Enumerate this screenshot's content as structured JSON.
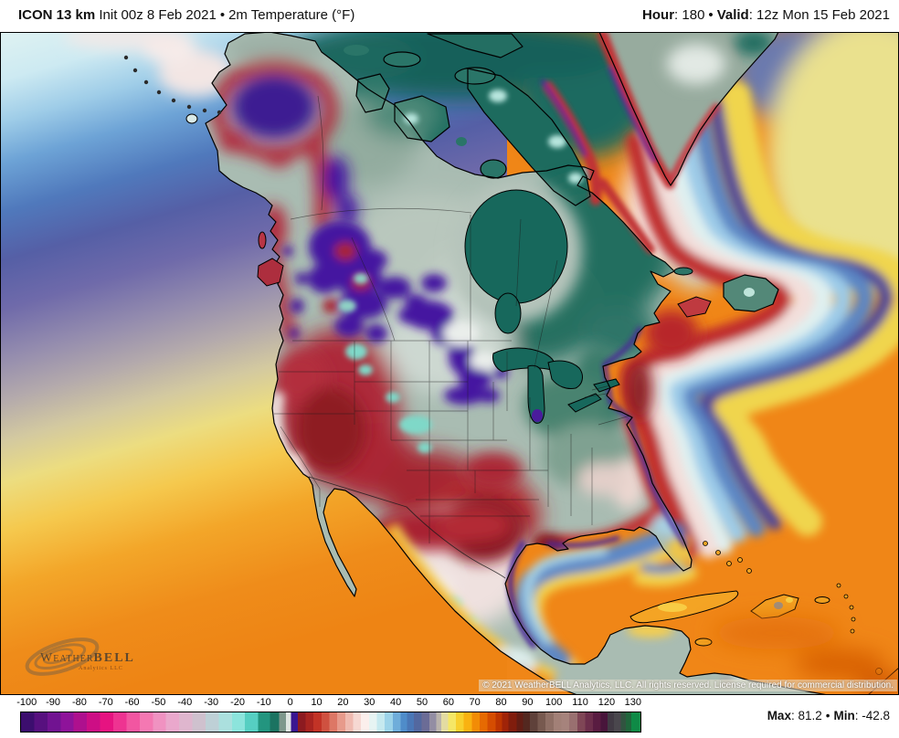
{
  "header": {
    "model": "ICON 13 km",
    "init": "Init 00z 8 Feb 2021",
    "bullet": "•",
    "variable": "2m Temperature (°F)",
    "hour_label": "Hour",
    "hour_value": ": 180",
    "valid_label": "Valid",
    "valid_value": ": 12z Mon 15 Feb 2021"
  },
  "map": {
    "copyright": "© 2021 WeatherBELL Analytics, LLC. All rights reserved. License required for commercial distribution.",
    "logo": {
      "word_start": "Weather",
      "word_end": "BELL",
      "subtitle": "Analytics LLC"
    }
  },
  "legend": {
    "unit": "°F",
    "range": [
      -102.5,
      132.5
    ],
    "ticks": [
      -100,
      -90,
      -80,
      -70,
      -60,
      -50,
      -40,
      -30,
      -20,
      -10,
      0,
      10,
      20,
      30,
      40,
      50,
      60,
      70,
      80,
      90,
      100,
      110,
      120,
      130
    ],
    "stops": [
      {
        "t": -100,
        "c": "#3c0e6e"
      },
      {
        "t": -95,
        "c": "#57107f"
      },
      {
        "t": -90,
        "c": "#711391"
      },
      {
        "t": -85,
        "c": "#8e139a"
      },
      {
        "t": -80,
        "c": "#ae108e"
      },
      {
        "t": -75,
        "c": "#cd0e85"
      },
      {
        "t": -70,
        "c": "#e61381"
      },
      {
        "t": -65,
        "c": "#ee3391"
      },
      {
        "t": -60,
        "c": "#f256a1"
      },
      {
        "t": -55,
        "c": "#f478b2"
      },
      {
        "t": -50,
        "c": "#f092c1"
      },
      {
        "t": -45,
        "c": "#eaa8cc"
      },
      {
        "t": -40,
        "c": "#dfb6ce"
      },
      {
        "t": -35,
        "c": "#cfc1ce"
      },
      {
        "t": -30,
        "c": "#bed0d6"
      },
      {
        "t": -25,
        "c": "#abe0de"
      },
      {
        "t": -20,
        "c": "#8ce4dc"
      },
      {
        "t": -15,
        "c": "#56cfc2"
      },
      {
        "t": -10,
        "c": "#23957f"
      },
      {
        "t": -6,
        "c": "#1b7361"
      },
      {
        "t": -3,
        "c": "#7e978c"
      },
      {
        "t": -1,
        "c": "#dfe5e1"
      },
      {
        "t": 1,
        "c": "#3a1690"
      },
      {
        "t": 4,
        "c": "#8c1a20"
      },
      {
        "t": 7,
        "c": "#a82420"
      },
      {
        "t": 10,
        "c": "#c23326"
      },
      {
        "t": 13,
        "c": "#cf5140"
      },
      {
        "t": 16,
        "c": "#dd7765"
      },
      {
        "t": 19,
        "c": "#e79a8b"
      },
      {
        "t": 22,
        "c": "#efbab0"
      },
      {
        "t": 25,
        "c": "#f6d8d2"
      },
      {
        "t": 28,
        "c": "#fbefec"
      },
      {
        "t": 31,
        "c": "#e7f4f3"
      },
      {
        "t": 34,
        "c": "#c6e9ef"
      },
      {
        "t": 37,
        "c": "#9cd3e9"
      },
      {
        "t": 40,
        "c": "#6fadda"
      },
      {
        "t": 43,
        "c": "#4f8cc9"
      },
      {
        "t": 45,
        "c": "#4a77b6"
      },
      {
        "t": 48,
        "c": "#53689f"
      },
      {
        "t": 51,
        "c": "#6b6c96"
      },
      {
        "t": 54,
        "c": "#938ea3"
      },
      {
        "t": 56,
        "c": "#bab4ac"
      },
      {
        "t": 58,
        "c": "#e3dba2"
      },
      {
        "t": 61,
        "c": "#f5e766"
      },
      {
        "t": 64,
        "c": "#f8d02e"
      },
      {
        "t": 67,
        "c": "#f9b211"
      },
      {
        "t": 70,
        "c": "#f28c06"
      },
      {
        "t": 73,
        "c": "#e66a02"
      },
      {
        "t": 76,
        "c": "#d54d01"
      },
      {
        "t": 79,
        "c": "#bd3501"
      },
      {
        "t": 81,
        "c": "#a02408"
      },
      {
        "t": 84,
        "c": "#801d0d"
      },
      {
        "t": 87,
        "c": "#621d14"
      },
      {
        "t": 89,
        "c": "#532820"
      },
      {
        "t": 92,
        "c": "#5f413a"
      },
      {
        "t": 95,
        "c": "#77594f"
      },
      {
        "t": 98,
        "c": "#8f6f65"
      },
      {
        "t": 101,
        "c": "#a28077"
      },
      {
        "t": 104,
        "c": "#a6837c"
      },
      {
        "t": 107,
        "c": "#997070"
      },
      {
        "t": 110,
        "c": "#7f4656"
      },
      {
        "t": 113,
        "c": "#6c2e4b"
      },
      {
        "t": 116,
        "c": "#591c41"
      },
      {
        "t": 119,
        "c": "#48153b"
      },
      {
        "t": 121,
        "c": "#413a44"
      },
      {
        "t": 124,
        "c": "#4a474d"
      },
      {
        "t": 126,
        "c": "#315440"
      },
      {
        "t": 128,
        "c": "#20663c"
      },
      {
        "t": 130,
        "c": "#0f8a46"
      }
    ]
  },
  "footer": {
    "max_label": "Max",
    "max_value": ": 81.2",
    "bullet": "•",
    "min_label": "Min",
    "min_value": ": -42.8"
  },
  "chart_data": {
    "type": "heatmap",
    "title": "ICON 13 km 2m Temperature (°F)",
    "init": "00z 8 Feb 2021",
    "forecast_hour": 180,
    "valid": "12z Mon 15 Feb 2021",
    "unit": "°F",
    "region": "North America",
    "colorbar_ticks": [
      -100,
      -90,
      -80,
      -70,
      -60,
      -50,
      -40,
      -30,
      -20,
      -10,
      0,
      10,
      20,
      30,
      40,
      50,
      60,
      70,
      80,
      90,
      100,
      110,
      120,
      130
    ],
    "max": 81.2,
    "min": -42.8,
    "legend_position": "bottom"
  }
}
